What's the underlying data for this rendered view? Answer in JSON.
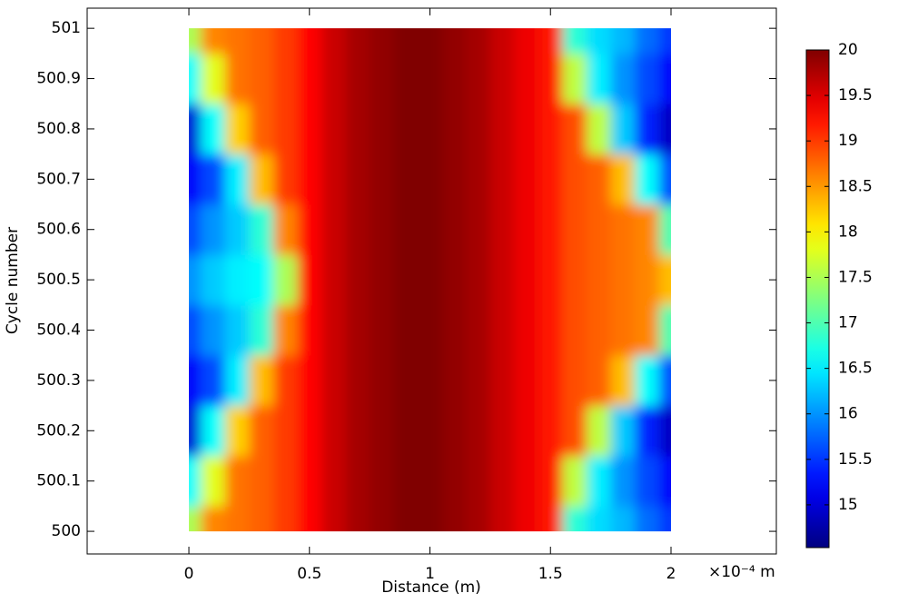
{
  "chart_data": {
    "type": "heatmap",
    "xlabel": "Distance (m)",
    "ylabel": "Cycle number",
    "x_multiplier": "×10⁻⁴ m",
    "x": [
      0,
      0.1,
      0.2,
      0.3,
      0.4,
      0.5,
      0.6,
      0.7,
      0.8,
      0.9,
      1,
      1.1,
      1.2,
      1.3,
      1.4,
      1.5,
      1.6,
      1.7,
      1.8,
      1.9,
      2
    ],
    "y": [
      500,
      500.1,
      500.2,
      500.3,
      500.4,
      500.5,
      500.6,
      500.7,
      500.8,
      500.9,
      501
    ],
    "values": [
      [
        17.5,
        18.6,
        18.7,
        18.8,
        19.0,
        19.3,
        19.6,
        19.8,
        19.9,
        20.0,
        20.0,
        19.9,
        19.8,
        19.6,
        19.4,
        19.2,
        16.8,
        16.4,
        16.2,
        15.8,
        15.5
      ],
      [
        16.6,
        17.8,
        18.7,
        18.8,
        19.0,
        19.3,
        19.6,
        19.8,
        19.9,
        20.0,
        20.0,
        19.9,
        19.8,
        19.6,
        19.4,
        19.2,
        17.6,
        16.5,
        16.0,
        15.6,
        15.2
      ],
      [
        15.0,
        16.6,
        18.2,
        18.8,
        19.0,
        19.3,
        19.6,
        19.8,
        19.9,
        20.0,
        20.0,
        19.9,
        19.8,
        19.6,
        19.4,
        19.2,
        18.9,
        17.6,
        16.3,
        15.4,
        14.9
      ],
      [
        15.2,
        15.6,
        16.5,
        18.3,
        19.0,
        19.3,
        19.6,
        19.8,
        19.9,
        20.0,
        20.0,
        19.9,
        19.8,
        19.6,
        19.4,
        19.2,
        18.9,
        18.8,
        18.3,
        16.6,
        15.6
      ],
      [
        15.6,
        16.0,
        16.3,
        16.8,
        18.6,
        19.3,
        19.6,
        19.8,
        19.9,
        20.0,
        20.0,
        19.9,
        19.8,
        19.6,
        19.4,
        19.2,
        18.9,
        18.8,
        18.7,
        18.6,
        17.0
      ],
      [
        16.0,
        16.3,
        16.5,
        16.6,
        17.5,
        19.3,
        19.6,
        19.8,
        19.9,
        20.0,
        20.0,
        19.9,
        19.8,
        19.6,
        19.4,
        19.2,
        18.9,
        18.8,
        18.7,
        18.6,
        18.3
      ],
      [
        15.6,
        16.0,
        16.3,
        16.8,
        18.6,
        19.3,
        19.6,
        19.8,
        19.9,
        20.0,
        20.0,
        19.9,
        19.8,
        19.6,
        19.4,
        19.2,
        18.9,
        18.8,
        18.7,
        18.6,
        17.0
      ],
      [
        15.2,
        15.6,
        16.5,
        18.3,
        19.0,
        19.3,
        19.6,
        19.8,
        19.9,
        20.0,
        20.0,
        19.9,
        19.8,
        19.6,
        19.4,
        19.2,
        18.9,
        18.8,
        18.3,
        16.6,
        15.6
      ],
      [
        15.0,
        16.6,
        18.2,
        18.8,
        19.0,
        19.3,
        19.6,
        19.8,
        19.9,
        20.0,
        20.0,
        19.9,
        19.8,
        19.6,
        19.4,
        19.2,
        18.9,
        17.6,
        16.3,
        15.4,
        14.9
      ],
      [
        16.6,
        17.8,
        18.7,
        18.8,
        19.0,
        19.3,
        19.6,
        19.8,
        19.9,
        20.0,
        20.0,
        19.9,
        19.8,
        19.6,
        19.4,
        19.2,
        17.6,
        16.5,
        16.0,
        15.6,
        15.2
      ],
      [
        17.5,
        18.6,
        18.7,
        18.8,
        19.0,
        19.3,
        19.6,
        19.8,
        19.9,
        20.0,
        20.0,
        19.9,
        19.8,
        19.6,
        19.4,
        19.2,
        16.8,
        16.4,
        16.2,
        15.8,
        15.5
      ]
    ],
    "xlim": [
      -0.422,
      2.437
    ],
    "ylim": [
      499.955,
      501.04
    ],
    "xticks": [
      0,
      0.5,
      1,
      1.5,
      2
    ],
    "yticks": [
      500,
      500.1,
      500.2,
      500.3,
      500.4,
      500.5,
      500.6,
      500.7,
      500.8,
      500.9,
      501
    ],
    "colorbar": {
      "colormap": "jet",
      "clim": [
        14.53,
        20
      ],
      "ticks": [
        15,
        15.5,
        16,
        16.5,
        17,
        17.5,
        18,
        18.5,
        19,
        19.5,
        20
      ]
    }
  }
}
